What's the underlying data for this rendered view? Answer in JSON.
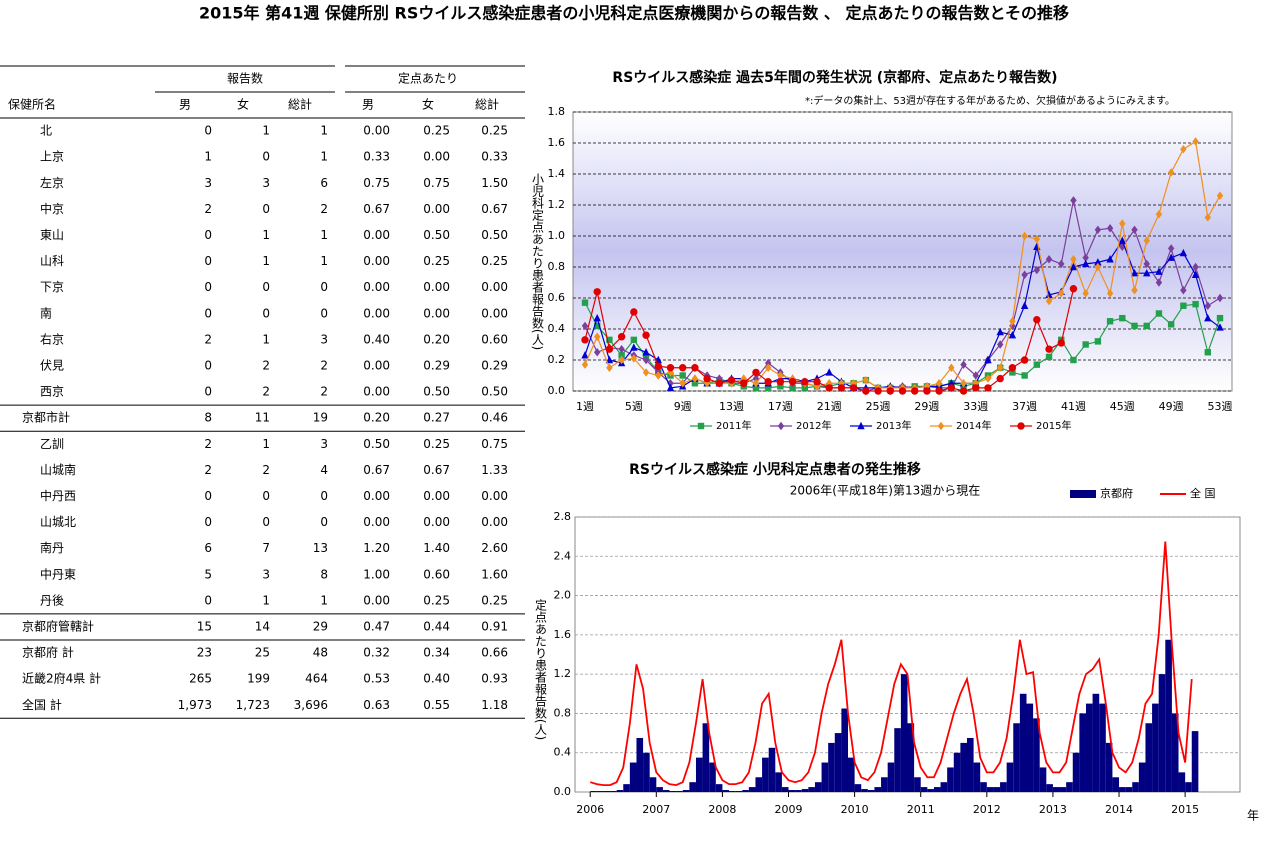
{
  "title": "2015年 第41週 保健所別 RSウイルス感染症患者の小児科定点医療機関からの報告数 、 定点あたりの報告数とその推移",
  "table": {
    "name_header": "保健所名",
    "groups": [
      "報告数",
      "定点あたり"
    ],
    "columns": [
      "男",
      "女",
      "総計",
      "男",
      "女",
      "総計"
    ],
    "sections": [
      {
        "rows": [
          [
            "北",
            "0",
            "1",
            "1",
            "0.00",
            "0.25",
            "0.25"
          ],
          [
            "上京",
            "1",
            "0",
            "1",
            "0.33",
            "0.00",
            "0.33"
          ],
          [
            "左京",
            "3",
            "3",
            "6",
            "0.75",
            "0.75",
            "1.50"
          ],
          [
            "中京",
            "2",
            "0",
            "2",
            "0.67",
            "0.00",
            "0.67"
          ],
          [
            "東山",
            "0",
            "1",
            "1",
            "0.00",
            "0.50",
            "0.50"
          ],
          [
            "山科",
            "0",
            "1",
            "1",
            "0.00",
            "0.25",
            "0.25"
          ],
          [
            "下京",
            "0",
            "0",
            "0",
            "0.00",
            "0.00",
            "0.00"
          ],
          [
            "南",
            "0",
            "0",
            "0",
            "0.00",
            "0.00",
            "0.00"
          ],
          [
            "右京",
            "2",
            "1",
            "3",
            "0.40",
            "0.20",
            "0.60"
          ],
          [
            "伏見",
            "0",
            "2",
            "2",
            "0.00",
            "0.29",
            "0.29"
          ],
          [
            "西京",
            "0",
            "2",
            "2",
            "0.00",
            "0.50",
            "0.50"
          ]
        ],
        "total": [
          "京都市計",
          "8",
          "11",
          "19",
          "0.20",
          "0.27",
          "0.46"
        ]
      },
      {
        "rows": [
          [
            "乙訓",
            "2",
            "1",
            "3",
            "0.50",
            "0.25",
            "0.75"
          ],
          [
            "山城南",
            "2",
            "2",
            "4",
            "0.67",
            "0.67",
            "1.33"
          ],
          [
            "中丹西",
            "0",
            "0",
            "0",
            "0.00",
            "0.00",
            "0.00"
          ],
          [
            "山城北",
            "0",
            "0",
            "0",
            "0.00",
            "0.00",
            "0.00"
          ],
          [
            "南丹",
            "6",
            "7",
            "13",
            "1.20",
            "1.40",
            "2.60"
          ],
          [
            "中丹東",
            "5",
            "3",
            "8",
            "1.00",
            "0.60",
            "1.60"
          ],
          [
            "丹後",
            "0",
            "1",
            "1",
            "0.00",
            "0.25",
            "0.25"
          ]
        ],
        "total": [
          "京都府管轄計",
          "15",
          "14",
          "29",
          "0.47",
          "0.44",
          "0.91"
        ]
      }
    ],
    "summary": [
      [
        "京都府 計",
        "23",
        "25",
        "48",
        "0.32",
        "0.34",
        "0.66"
      ],
      [
        "近畿2府4県 計",
        "265",
        "199",
        "464",
        "0.53",
        "0.40",
        "0.93"
      ],
      [
        "全国 計",
        "1,973",
        "1,723",
        "3,696",
        "0.63",
        "0.55",
        "1.18"
      ]
    ]
  },
  "chart_data": [
    {
      "type": "line",
      "title": "RSウイルス感染症 過去5年間の発生状況 (京都府、定点あたり報告数)",
      "note": "*:データの集計上、53週が存在する年があるため、欠損値があるようにみえます。",
      "ylabel": "小児科定点あたり患者報告数(人)",
      "categories": [
        "1週",
        null,
        null,
        null,
        "5週",
        null,
        null,
        null,
        "9週",
        null,
        null,
        null,
        "13週",
        null,
        null,
        null,
        "17週",
        null,
        null,
        null,
        "21週",
        null,
        null,
        null,
        "25週",
        null,
        null,
        null,
        "29週",
        null,
        null,
        null,
        "33週",
        null,
        null,
        null,
        "37週",
        null,
        null,
        null,
        "41週",
        null,
        null,
        null,
        "45週",
        null,
        null,
        null,
        "49週",
        null,
        null,
        null,
        "53週"
      ],
      "ylim": [
        0,
        1.8
      ],
      "yticks": [
        {
          "value": 0,
          "label": "0.0"
        },
        0.2,
        0.4,
        0.6,
        0.8,
        {
          "value": 1,
          "label": "1.0"
        },
        1.2,
        1.4,
        1.6,
        1.8
      ],
      "grid": true,
      "legend": "bottom",
      "series": [
        {
          "name": "2011年",
          "color": "#22a04b",
          "marker": "square",
          "values": [
            0.57,
            0.42,
            0.33,
            0.23,
            0.33,
            0.22,
            0.12,
            0.1,
            0.1,
            0.05,
            0.05,
            0.07,
            0.05,
            0.03,
            0.02,
            0.02,
            0.03,
            0.02,
            0.02,
            0.03,
            0.03,
            0.05,
            0.05,
            0.07,
            0.02,
            0.02,
            0.02,
            0.03,
            0.03,
            0.03,
            0.05,
            0.03,
            0.05,
            0.1,
            0.15,
            0.12,
            0.1,
            0.17,
            0.22,
            0.33,
            0.2,
            0.3,
            0.32,
            0.45,
            0.47,
            0.42,
            0.42,
            0.5,
            0.43,
            0.55,
            0.56,
            0.25,
            0.47
          ]
        },
        {
          "name": "2012年",
          "color": "#7b3f9c",
          "marker": "diamond",
          "values": [
            0.42,
            0.25,
            0.28,
            0.27,
            0.23,
            0.2,
            0.12,
            0.05,
            0.05,
            0.15,
            0.1,
            0.08,
            0.05,
            0.05,
            0.08,
            0.18,
            0.12,
            0.05,
            0.05,
            0.03,
            0.02,
            0.02,
            0.02,
            0,
            0.02,
            0.02,
            0.03,
            0.02,
            0.03,
            0.02,
            0.02,
            0.17,
            0.1,
            0.2,
            0.3,
            0.42,
            0.75,
            0.78,
            0.85,
            0.82,
            1.23,
            0.86,
            1.04,
            1.05,
            0.93,
            1.04,
            0.82,
            0.7,
            0.92,
            0.65,
            0.8,
            0.55,
            0.6
          ]
        },
        {
          "name": "2013年",
          "color": "#0000d0",
          "marker": "triangle",
          "values": [
            0.23,
            0.47,
            0.2,
            0.18,
            0.28,
            0.25,
            0.2,
            0.02,
            0.03,
            0.08,
            0.05,
            0.05,
            0.08,
            0.08,
            0.05,
            0.05,
            0.08,
            0.08,
            0.06,
            0.08,
            0.12,
            0.06,
            0.02,
            0.02,
            0.02,
            0.03,
            0.02,
            0.02,
            0.03,
            0.03,
            0.05,
            0.05,
            0.05,
            0.2,
            0.38,
            0.36,
            0.55,
            0.93,
            0.62,
            0.64,
            0.8,
            0.82,
            0.83,
            0.85,
            0.97,
            0.76,
            0.76,
            0.77,
            0.86,
            0.89,
            0.75,
            0.47,
            0.41
          ]
        },
        {
          "name": "2014年",
          "color": "#f0901e",
          "marker": "diamond",
          "values": [
            0.17,
            0.35,
            0.15,
            0.2,
            0.21,
            0.12,
            0.1,
            0.12,
            0.05,
            0.08,
            0.05,
            0.05,
            0.05,
            0.08,
            0.05,
            0.15,
            0.1,
            0.08,
            0.05,
            0.03,
            0.05,
            0.05,
            0.05,
            0.07,
            0.02,
            0.02,
            0.02,
            0.02,
            0.03,
            0.05,
            0.15,
            0.05,
            0.05,
            0.08,
            0.15,
            0.45,
            1.0,
            0.98,
            0.58,
            0.63,
            0.85,
            0.63,
            0.8,
            0.63,
            1.08,
            0.65,
            0.97,
            1.14,
            1.41,
            1.56,
            1.61,
            1.12,
            1.26
          ]
        },
        {
          "name": "2015年",
          "color": "#e00000",
          "marker": "circle",
          "values": [
            0.33,
            0.64,
            0.27,
            0.35,
            0.51,
            0.36,
            0.16,
            0.15,
            0.15,
            0.15,
            0.08,
            0.05,
            0.07,
            0.05,
            0.12,
            0.06,
            0.06,
            0.06,
            0.06,
            0.06,
            0.02,
            0.02,
            0.02,
            0,
            0,
            0,
            0,
            0,
            0,
            0,
            0.02,
            0,
            0.02,
            0.02,
            0.08,
            0.15,
            0.2,
            0.46,
            0.27,
            0.31,
            0.66,
            null,
            null,
            null,
            null,
            null,
            null,
            null,
            null,
            null,
            null,
            null,
            null
          ]
        }
      ]
    },
    {
      "type": "combo",
      "title": "RSウイルス感染症 小児科定点患者の発生推移",
      "subtitle": "2006年(平成18年)第13週から現在",
      "ylabel": "定点あたり患者報告数(人)",
      "xunit": "年",
      "xlim": [
        2005.77,
        2015.83
      ],
      "xticks": [
        2006,
        2007,
        2008,
        2009,
        2010,
        2011,
        2012,
        2013,
        2014,
        2015
      ],
      "ylim": [
        0,
        2.8
      ],
      "yticks": [
        {
          "value": 0,
          "label": "0.0"
        },
        0.4,
        0.8,
        1.2,
        1.6,
        {
          "value": 2,
          "label": "2.0"
        },
        2.4,
        2.8
      ],
      "grid": true,
      "legend": "top-right",
      "x": [
        2006.0,
        2006.1,
        2006.2,
        2006.3,
        2006.4,
        2006.5,
        2006.6,
        2006.7,
        2006.8,
        2006.9,
        2007.0,
        2007.1,
        2007.2,
        2007.3,
        2007.4,
        2007.5,
        2007.6,
        2007.7,
        2007.8,
        2007.9,
        2008.0,
        2008.1,
        2008.2,
        2008.3,
        2008.4,
        2008.5,
        2008.6,
        2008.7,
        2008.8,
        2008.9,
        2009.0,
        2009.1,
        2009.2,
        2009.3,
        2009.4,
        2009.5,
        2009.6,
        2009.7,
        2009.8,
        2009.9,
        2010.0,
        2010.1,
        2010.2,
        2010.3,
        2010.4,
        2010.5,
        2010.6,
        2010.7,
        2010.8,
        2010.9,
        2011.0,
        2011.1,
        2011.2,
        2011.3,
        2011.4,
        2011.5,
        2011.6,
        2011.7,
        2011.8,
        2011.9,
        2012.0,
        2012.1,
        2012.2,
        2012.3,
        2012.4,
        2012.5,
        2012.6,
        2012.7,
        2012.8,
        2012.9,
        2013.0,
        2013.1,
        2013.2,
        2013.3,
        2013.4,
        2013.5,
        2013.6,
        2013.7,
        2013.8,
        2013.9,
        2014.0,
        2014.1,
        2014.2,
        2014.3,
        2014.4,
        2014.5,
        2014.6,
        2014.7,
        2014.8,
        2014.9,
        2015.0,
        2015.1
      ],
      "series": [
        {
          "name": "京都府",
          "type": "bar",
          "color": "#000080",
          "values": [
            0.01,
            0.01,
            0.01,
            0.01,
            0.02,
            0.08,
            0.3,
            0.55,
            0.4,
            0.15,
            0.05,
            0.02,
            0.01,
            0.01,
            0.02,
            0.1,
            0.35,
            0.7,
            0.3,
            0.08,
            0.02,
            0.01,
            0.01,
            0.02,
            0.05,
            0.15,
            0.35,
            0.45,
            0.2,
            0.05,
            0.02,
            0.02,
            0.03,
            0.05,
            0.1,
            0.3,
            0.5,
            0.6,
            0.85,
            0.35,
            0.08,
            0.03,
            0.02,
            0.05,
            0.15,
            0.3,
            0.65,
            1.2,
            0.7,
            0.15,
            0.05,
            0.03,
            0.05,
            0.1,
            0.25,
            0.4,
            0.5,
            0.55,
            0.3,
            0.1,
            0.05,
            0.05,
            0.1,
            0.3,
            0.7,
            1.0,
            0.9,
            0.75,
            0.25,
            0.08,
            0.05,
            0.05,
            0.1,
            0.4,
            0.8,
            0.9,
            1.0,
            0.9,
            0.5,
            0.15,
            0.05,
            0.05,
            0.1,
            0.3,
            0.7,
            0.9,
            1.2,
            1.55,
            0.8,
            0.2,
            0.1,
            0.62
          ]
        },
        {
          "name": "全 国",
          "type": "line",
          "color": "#ff0000",
          "values": [
            0.1,
            0.08,
            0.07,
            0.07,
            0.1,
            0.25,
            0.7,
            1.3,
            1.05,
            0.5,
            0.2,
            0.12,
            0.08,
            0.07,
            0.1,
            0.3,
            0.7,
            1.15,
            0.6,
            0.25,
            0.12,
            0.08,
            0.08,
            0.1,
            0.2,
            0.5,
            0.9,
            1.0,
            0.5,
            0.2,
            0.12,
            0.1,
            0.12,
            0.2,
            0.4,
            0.8,
            1.1,
            1.3,
            1.55,
            0.8,
            0.3,
            0.15,
            0.12,
            0.2,
            0.4,
            0.75,
            1.1,
            1.3,
            1.2,
            0.5,
            0.25,
            0.15,
            0.15,
            0.3,
            0.55,
            0.8,
            1.0,
            1.15,
            0.8,
            0.35,
            0.2,
            0.2,
            0.3,
            0.55,
            1.0,
            1.55,
            1.2,
            1.22,
            0.6,
            0.3,
            0.2,
            0.2,
            0.3,
            0.65,
            1.0,
            1.2,
            1.25,
            1.35,
            0.9,
            0.4,
            0.25,
            0.2,
            0.3,
            0.55,
            0.9,
            1.0,
            1.6,
            2.55,
            1.5,
            0.6,
            0.3,
            1.15
          ]
        }
      ]
    }
  ]
}
